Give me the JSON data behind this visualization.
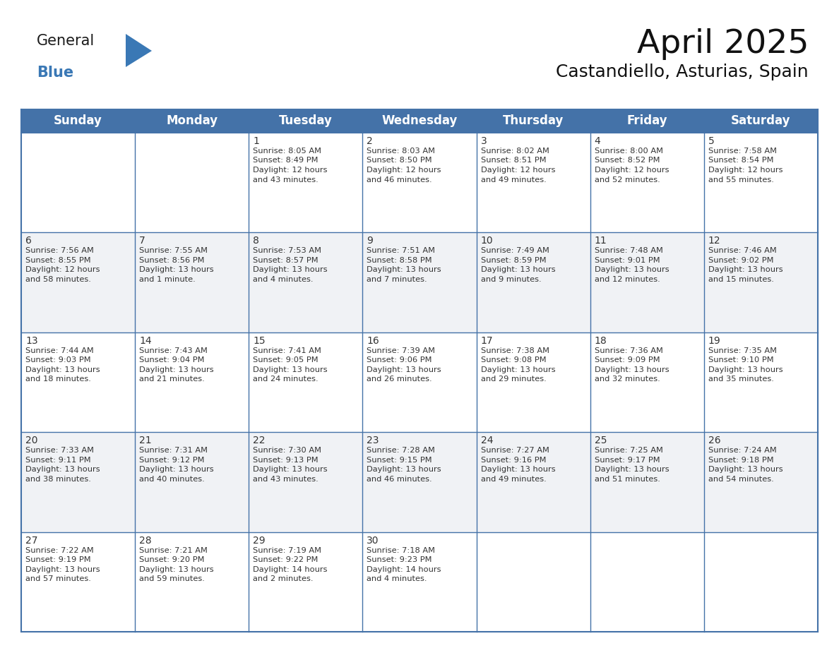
{
  "title": "April 2025",
  "subtitle": "Castandiello, Asturias, Spain",
  "header_bg_color": "#4472a8",
  "header_text_color": "#ffffff",
  "row_bg_white": "#ffffff",
  "row_bg_gray": "#f0f2f5",
  "grid_color": "#4472a8",
  "divider_color": "#4472a8",
  "text_color": "#333333",
  "day_headers": [
    "Sunday",
    "Monday",
    "Tuesday",
    "Wednesday",
    "Thursday",
    "Friday",
    "Saturday"
  ],
  "weeks": [
    [
      {
        "day": "",
        "info": ""
      },
      {
        "day": "",
        "info": ""
      },
      {
        "day": "1",
        "info": "Sunrise: 8:05 AM\nSunset: 8:49 PM\nDaylight: 12 hours\nand 43 minutes."
      },
      {
        "day": "2",
        "info": "Sunrise: 8:03 AM\nSunset: 8:50 PM\nDaylight: 12 hours\nand 46 minutes."
      },
      {
        "day": "3",
        "info": "Sunrise: 8:02 AM\nSunset: 8:51 PM\nDaylight: 12 hours\nand 49 minutes."
      },
      {
        "day": "4",
        "info": "Sunrise: 8:00 AM\nSunset: 8:52 PM\nDaylight: 12 hours\nand 52 minutes."
      },
      {
        "day": "5",
        "info": "Sunrise: 7:58 AM\nSunset: 8:54 PM\nDaylight: 12 hours\nand 55 minutes."
      }
    ],
    [
      {
        "day": "6",
        "info": "Sunrise: 7:56 AM\nSunset: 8:55 PM\nDaylight: 12 hours\nand 58 minutes."
      },
      {
        "day": "7",
        "info": "Sunrise: 7:55 AM\nSunset: 8:56 PM\nDaylight: 13 hours\nand 1 minute."
      },
      {
        "day": "8",
        "info": "Sunrise: 7:53 AM\nSunset: 8:57 PM\nDaylight: 13 hours\nand 4 minutes."
      },
      {
        "day": "9",
        "info": "Sunrise: 7:51 AM\nSunset: 8:58 PM\nDaylight: 13 hours\nand 7 minutes."
      },
      {
        "day": "10",
        "info": "Sunrise: 7:49 AM\nSunset: 8:59 PM\nDaylight: 13 hours\nand 9 minutes."
      },
      {
        "day": "11",
        "info": "Sunrise: 7:48 AM\nSunset: 9:01 PM\nDaylight: 13 hours\nand 12 minutes."
      },
      {
        "day": "12",
        "info": "Sunrise: 7:46 AM\nSunset: 9:02 PM\nDaylight: 13 hours\nand 15 minutes."
      }
    ],
    [
      {
        "day": "13",
        "info": "Sunrise: 7:44 AM\nSunset: 9:03 PM\nDaylight: 13 hours\nand 18 minutes."
      },
      {
        "day": "14",
        "info": "Sunrise: 7:43 AM\nSunset: 9:04 PM\nDaylight: 13 hours\nand 21 minutes."
      },
      {
        "day": "15",
        "info": "Sunrise: 7:41 AM\nSunset: 9:05 PM\nDaylight: 13 hours\nand 24 minutes."
      },
      {
        "day": "16",
        "info": "Sunrise: 7:39 AM\nSunset: 9:06 PM\nDaylight: 13 hours\nand 26 minutes."
      },
      {
        "day": "17",
        "info": "Sunrise: 7:38 AM\nSunset: 9:08 PM\nDaylight: 13 hours\nand 29 minutes."
      },
      {
        "day": "18",
        "info": "Sunrise: 7:36 AM\nSunset: 9:09 PM\nDaylight: 13 hours\nand 32 minutes."
      },
      {
        "day": "19",
        "info": "Sunrise: 7:35 AM\nSunset: 9:10 PM\nDaylight: 13 hours\nand 35 minutes."
      }
    ],
    [
      {
        "day": "20",
        "info": "Sunrise: 7:33 AM\nSunset: 9:11 PM\nDaylight: 13 hours\nand 38 minutes."
      },
      {
        "day": "21",
        "info": "Sunrise: 7:31 AM\nSunset: 9:12 PM\nDaylight: 13 hours\nand 40 minutes."
      },
      {
        "day": "22",
        "info": "Sunrise: 7:30 AM\nSunset: 9:13 PM\nDaylight: 13 hours\nand 43 minutes."
      },
      {
        "day": "23",
        "info": "Sunrise: 7:28 AM\nSunset: 9:15 PM\nDaylight: 13 hours\nand 46 minutes."
      },
      {
        "day": "24",
        "info": "Sunrise: 7:27 AM\nSunset: 9:16 PM\nDaylight: 13 hours\nand 49 minutes."
      },
      {
        "day": "25",
        "info": "Sunrise: 7:25 AM\nSunset: 9:17 PM\nDaylight: 13 hours\nand 51 minutes."
      },
      {
        "day": "26",
        "info": "Sunrise: 7:24 AM\nSunset: 9:18 PM\nDaylight: 13 hours\nand 54 minutes."
      }
    ],
    [
      {
        "day": "27",
        "info": "Sunrise: 7:22 AM\nSunset: 9:19 PM\nDaylight: 13 hours\nand 57 minutes."
      },
      {
        "day": "28",
        "info": "Sunrise: 7:21 AM\nSunset: 9:20 PM\nDaylight: 13 hours\nand 59 minutes."
      },
      {
        "day": "29",
        "info": "Sunrise: 7:19 AM\nSunset: 9:22 PM\nDaylight: 14 hours\nand 2 minutes."
      },
      {
        "day": "30",
        "info": "Sunrise: 7:18 AM\nSunset: 9:23 PM\nDaylight: 14 hours\nand 4 minutes."
      },
      {
        "day": "",
        "info": ""
      },
      {
        "day": "",
        "info": ""
      },
      {
        "day": "",
        "info": ""
      }
    ]
  ],
  "logo_text1": "General",
  "logo_text2": "Blue",
  "logo_color1": "#1a1a1a",
  "logo_color2": "#3a78b5",
  "title_fontsize": 34,
  "subtitle_fontsize": 18,
  "header_fontsize": 12,
  "day_num_fontsize": 10,
  "info_fontsize": 8.2
}
